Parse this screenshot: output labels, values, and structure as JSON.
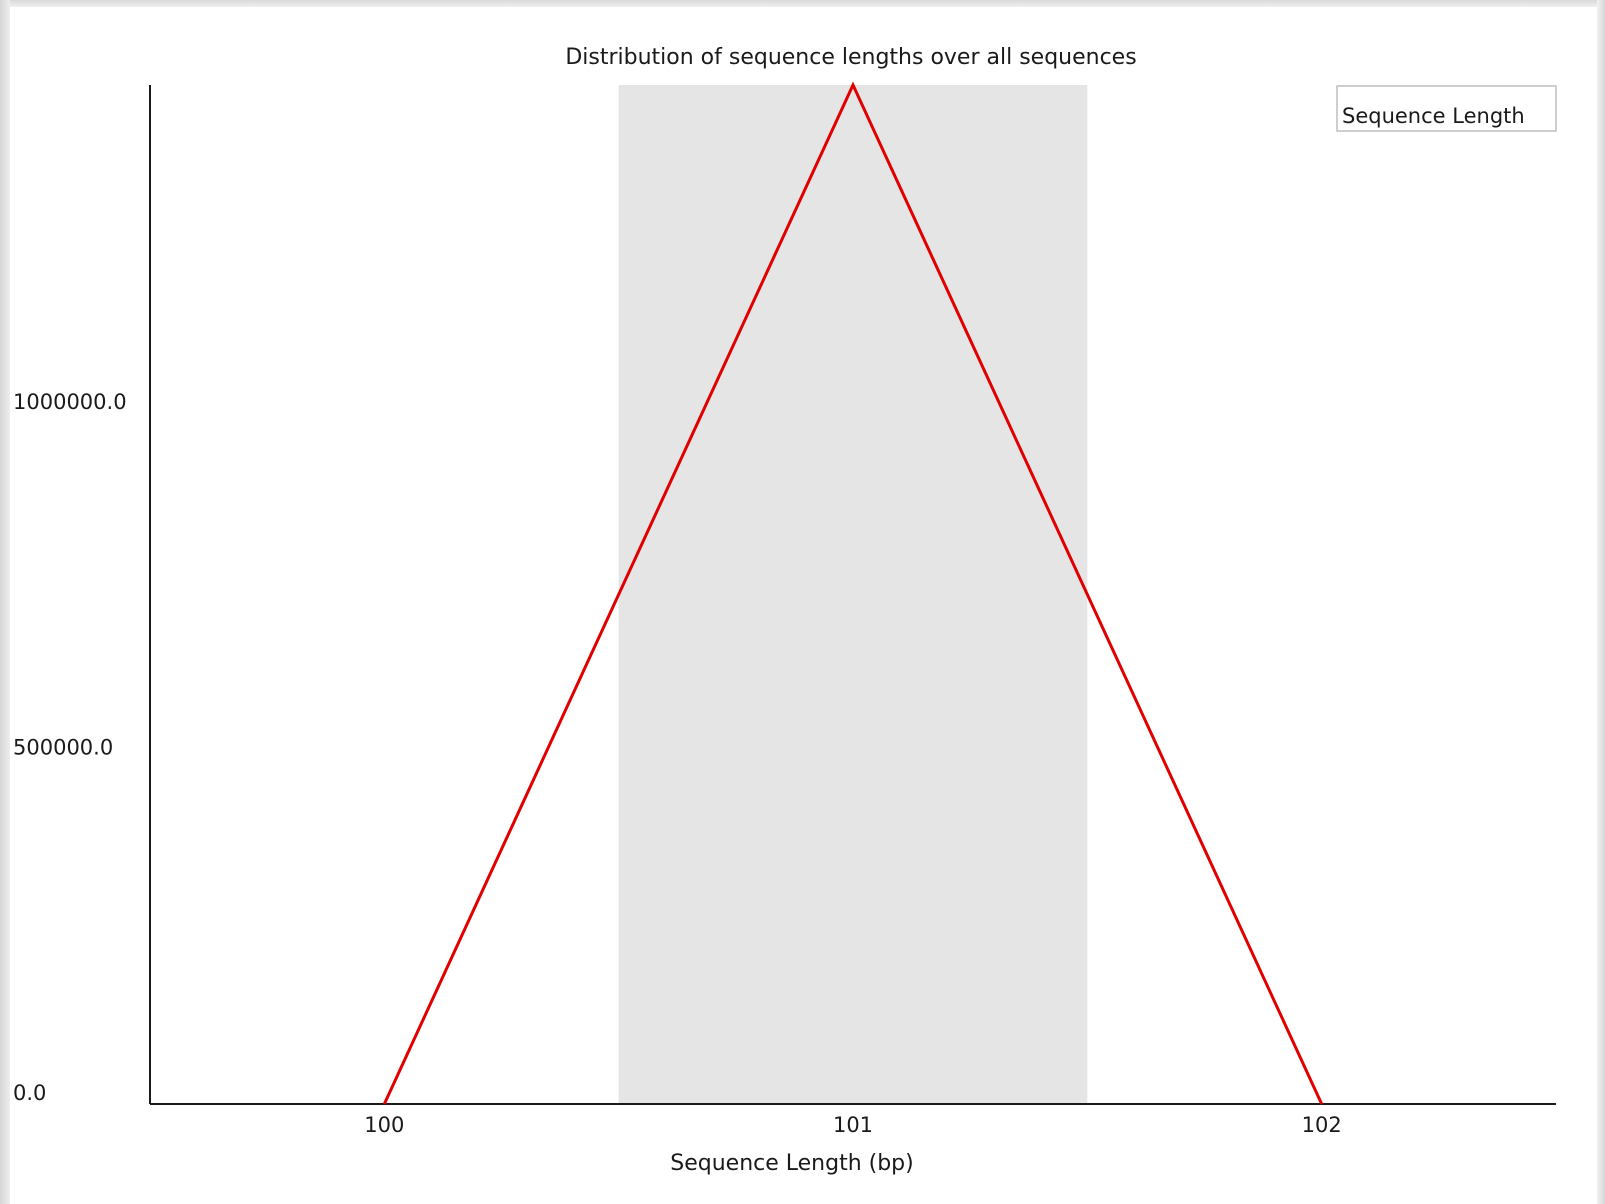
{
  "chart_data": {
    "type": "line",
    "title": "Distribution of sequence lengths over all sequences",
    "xlabel": "Sequence Length (bp)",
    "ylabel": "",
    "x": [
      100,
      101,
      102
    ],
    "xlim": [
      99.5,
      102.5
    ],
    "ylim": [
      0,
      1475000
    ],
    "x_ticks": [
      "100",
      "101",
      "102"
    ],
    "y_ticks": [
      "0.0",
      "500000.0",
      "1000000.0"
    ],
    "y_tick_values": [
      0,
      500000,
      1000000
    ],
    "series": [
      {
        "name": "Sequence Length",
        "color": "#e00000",
        "values": [
          0,
          1475000,
          0
        ]
      }
    ],
    "highlight_band": {
      "x_from": 100.5,
      "x_to": 101.5,
      "color": "#e5e5e5"
    },
    "legend": {
      "position": "top-right"
    },
    "grid": false
  }
}
